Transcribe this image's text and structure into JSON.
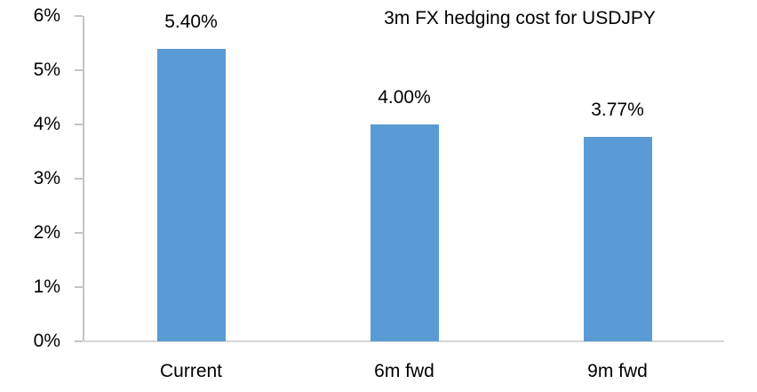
{
  "chart_data": {
    "type": "bar",
    "title": "3m FX hedging cost for USDJPY",
    "categories": [
      "Current",
      "6m fwd",
      "9m fwd"
    ],
    "values": [
      5.4,
      4.0,
      3.77
    ],
    "data_labels": [
      "5.40%",
      "4.00%",
      "3.77%"
    ],
    "xlabel": "",
    "ylabel": "",
    "ylim": [
      0,
      6
    ],
    "y_step": 1,
    "y_tick_labels": [
      "0%",
      "1%",
      "2%",
      "3%",
      "4%",
      "5%",
      "6%"
    ],
    "grid": false,
    "legend_position": "none",
    "colors": {
      "bar": "#5B9BD5",
      "axis_line": "#D6D6D6",
      "tick": "#C4C4C4",
      "text": "#000000",
      "background": "#FFFFFF"
    }
  }
}
